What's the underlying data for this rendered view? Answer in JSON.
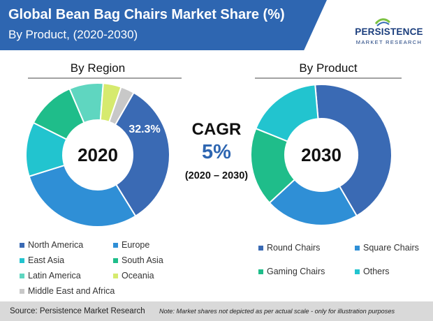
{
  "header": {
    "title": "Global Bean Bag Chairs Market Share (%)",
    "subtitle": "By Product, (2020-2030)"
  },
  "logo": {
    "name": "PERSISTENCE",
    "sub": "MARKET RESEARCH"
  },
  "cagr": {
    "label": "CAGR",
    "value": "5%",
    "period": "(2020 – 2030)"
  },
  "footer": {
    "source": "Source: Persistence Market Research",
    "note": "Note: Market shares not depicted as per actual scale - only for illustration purposes"
  },
  "chart_data": [
    {
      "type": "donut",
      "title": "By Region",
      "center_label": "2020",
      "highlight_label": "32.3%",
      "categories": [
        "North America",
        "Europe",
        "East Asia",
        "South Asia",
        "Latin America",
        "Oceania",
        "Middle East and Africa"
      ],
      "values": [
        32.3,
        28.5,
        12.0,
        11.0,
        7.5,
        4.0,
        3.0
      ],
      "colors": [
        "#3a6ab4",
        "#2f8fd6",
        "#22c4cf",
        "#1fbd8a",
        "#5fd6c0",
        "#d6ea6e",
        "#c8c8c8"
      ]
    },
    {
      "type": "donut",
      "title": "By Product",
      "center_label": "2030",
      "categories": [
        "Round Chairs",
        "Square Chairs",
        "Gaming Chairs",
        "Others"
      ],
      "values": [
        43.0,
        21.5,
        18.0,
        17.5
      ],
      "colors": [
        "#3a6ab4",
        "#2f8fd6",
        "#1fbd8a",
        "#22c4cf"
      ]
    }
  ]
}
